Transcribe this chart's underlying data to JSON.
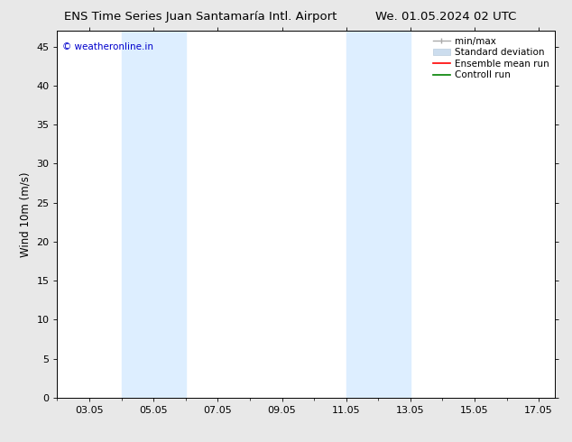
{
  "title_left": "ENS Time Series Juan Santamaría Intl. Airport",
  "title_right": "We. 01.05.2024 02 UTC",
  "ylabel": "Wind 10m (m/s)",
  "watermark": "© weatheronline.in",
  "watermark_color": "#0000cc",
  "ylim": [
    0,
    47
  ],
  "yticks": [
    0,
    5,
    10,
    15,
    20,
    25,
    30,
    35,
    40,
    45
  ],
  "xlim_start": 2.0,
  "xlim_end": 17.5,
  "xtick_labels": [
    "03.05",
    "05.05",
    "07.05",
    "09.05",
    "11.05",
    "13.05",
    "15.05",
    "17.05"
  ],
  "xtick_positions": [
    3.0,
    5.0,
    7.0,
    9.0,
    11.0,
    13.0,
    15.0,
    17.0
  ],
  "shaded_bands": [
    {
      "x_start": 4.0,
      "x_end": 6.0
    },
    {
      "x_start": 11.0,
      "x_end": 13.0
    }
  ],
  "shaded_color": "#ddeeff",
  "background_color": "#ffffff",
  "fig_bg_color": "#e8e8e8",
  "title_fontsize": 9.5,
  "tick_fontsize": 8,
  "ylabel_fontsize": 8.5,
  "watermark_fontsize": 7.5,
  "legend_fontsize": 7.5,
  "spine_color": "#000000",
  "minmax_color": "#aaaaaa",
  "stddev_color": "#ccddee",
  "ensemble_color": "#ff0000",
  "control_color": "#008000"
}
